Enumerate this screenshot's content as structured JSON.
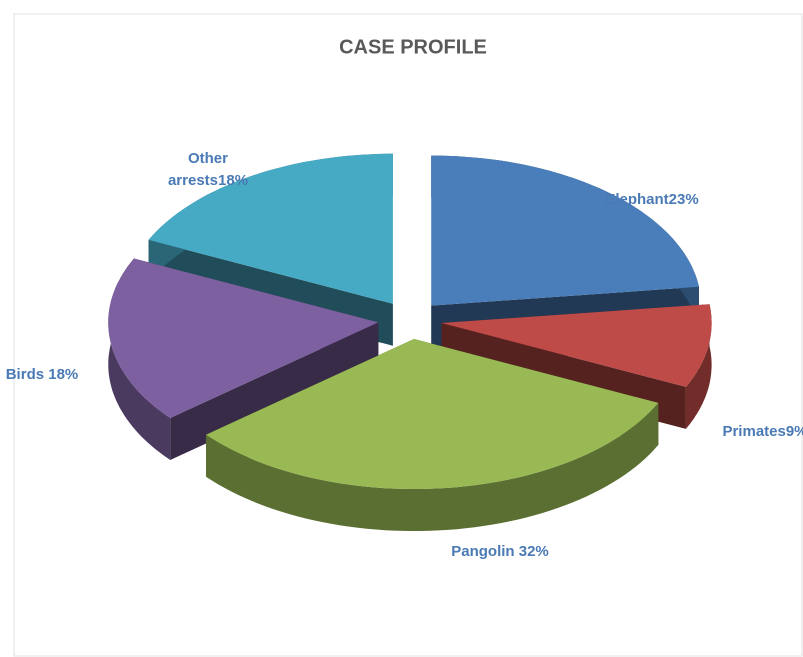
{
  "chart_data": {
    "type": "pie",
    "title": "CASE PROFILE",
    "values": [
      23,
      9,
      32,
      18,
      18
    ],
    "value_labels": [
      "Elephant23%",
      "Primates9%",
      "Pangolin 32%",
      "Birds 18%",
      "Other arrests18%"
    ],
    "colors": [
      "#4a7ebb",
      "#be4b48",
      "#98b954",
      "#7d60a0",
      "#46aac5"
    ]
  }
}
